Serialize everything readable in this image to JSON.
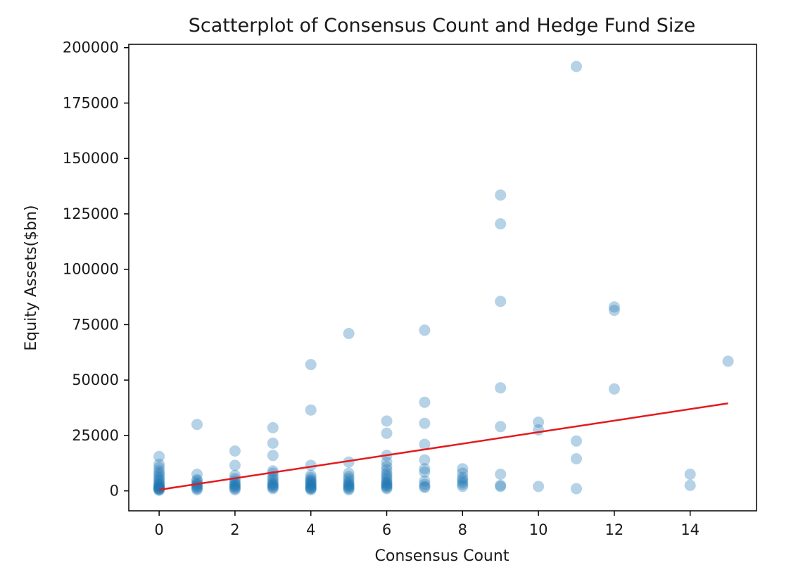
{
  "chart_data": {
    "type": "scatter",
    "title": "Scatterplot of Consensus Count and Hedge Fund Size",
    "xlabel": "Consensus Count",
    "ylabel": "Equity Assets($bn)",
    "xlim": [
      -0.8,
      15.75
    ],
    "ylim": [
      -9000,
      201500
    ],
    "xticks": [
      0,
      2,
      4,
      6,
      8,
      10,
      12,
      14
    ],
    "yticks": [
      0,
      25000,
      50000,
      75000,
      100000,
      125000,
      150000,
      175000,
      200000
    ],
    "grid": false,
    "legend": "none",
    "point_color": "#1f77b4",
    "line_color": "#e41a1c",
    "series": [
      {
        "type": "scatter",
        "x": [
          0,
          0,
          0,
          0,
          0,
          0,
          0,
          0,
          0,
          0,
          0,
          0,
          0,
          0,
          0,
          0,
          0,
          0,
          0,
          0,
          1,
          1,
          1,
          1,
          1,
          1,
          1,
          1,
          1,
          1,
          1,
          2,
          2,
          2,
          2,
          2,
          2,
          2,
          2,
          2,
          2,
          2,
          2,
          3,
          3,
          3,
          3,
          3,
          3,
          3,
          3,
          3,
          3,
          3,
          3,
          3,
          3,
          4,
          4,
          4,
          4,
          4,
          4,
          4,
          4,
          4,
          4,
          4,
          4,
          4,
          4,
          4,
          4,
          5,
          5,
          5,
          5,
          5,
          5,
          5,
          5,
          5,
          5,
          5,
          5,
          5,
          6,
          6,
          6,
          6,
          6,
          6,
          6,
          6,
          6,
          6,
          6,
          6,
          6,
          6,
          6,
          6,
          6,
          7,
          7,
          7,
          7,
          7,
          7,
          7,
          7,
          7,
          7,
          7,
          8,
          8,
          8,
          8,
          8,
          8,
          8,
          9,
          9,
          9,
          9,
          9,
          9,
          9,
          9,
          10,
          10,
          10,
          11,
          11,
          11,
          11,
          12,
          12,
          12,
          14,
          14,
          15
        ],
        "y": [
          15500,
          12000,
          10500,
          9000,
          8000,
          7000,
          6000,
          5000,
          4500,
          3500,
          3000,
          2500,
          2000,
          1800,
          1500,
          1200,
          1000,
          800,
          500,
          300,
          30000,
          7500,
          5000,
          4500,
          3500,
          3000,
          2500,
          2000,
          1500,
          1000,
          500,
          18000,
          11500,
          7000,
          5500,
          4500,
          3500,
          3000,
          2500,
          2000,
          1500,
          1000,
          500,
          28500,
          21500,
          16000,
          9000,
          8000,
          6500,
          5500,
          4500,
          3500,
          3000,
          2500,
          2000,
          1500,
          1000,
          57000,
          36500,
          11500,
          7000,
          6000,
          5000,
          4500,
          4000,
          3500,
          3000,
          2500,
          2000,
          1500,
          1200,
          1000,
          500,
          71000,
          13000,
          8000,
          6500,
          5500,
          4500,
          3500,
          3000,
          2500,
          2000,
          1500,
          1000,
          500,
          31500,
          26000,
          16000,
          13000,
          11000,
          9500,
          8000,
          7000,
          6000,
          5000,
          4000,
          3500,
          3000,
          2500,
          2000,
          1500,
          1000,
          72500,
          40000,
          30500,
          21000,
          14000,
          10000,
          8500,
          4500,
          3000,
          2000,
          1500,
          10000,
          8000,
          6000,
          5000,
          4000,
          3000,
          2000,
          133500,
          120500,
          85500,
          46500,
          29000,
          7500,
          2500,
          2000,
          31000,
          27500,
          2000,
          191500,
          22500,
          14500,
          1000,
          83000,
          81500,
          46000,
          7500,
          2500,
          58500
        ]
      },
      {
        "type": "line",
        "name": "",
        "x": [
          0,
          15
        ],
        "y": [
          500,
          39500
        ]
      }
    ]
  }
}
